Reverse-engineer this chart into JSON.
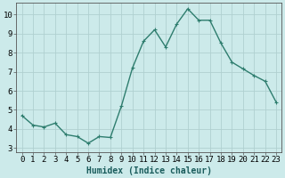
{
  "x": [
    0,
    1,
    2,
    3,
    4,
    5,
    6,
    7,
    8,
    9,
    10,
    11,
    12,
    13,
    14,
    15,
    16,
    17,
    18,
    19,
    20,
    21,
    22,
    23
  ],
  "y": [
    4.7,
    4.2,
    4.1,
    4.3,
    3.7,
    3.6,
    3.25,
    3.6,
    3.55,
    5.2,
    7.2,
    8.6,
    9.2,
    8.3,
    9.5,
    10.3,
    9.7,
    9.7,
    8.5,
    7.5,
    7.15,
    6.8,
    6.5,
    5.4
  ],
  "color": "#2e7d6e",
  "bg_color": "#cceaea",
  "grid_color": "#b0d0d0",
  "xlabel": "Humidex (Indice chaleur)",
  "ylim": [
    2.8,
    10.6
  ],
  "xlim": [
    -0.5,
    23.5
  ],
  "yticks": [
    3,
    4,
    5,
    6,
    7,
    8,
    9,
    10
  ],
  "xticks": [
    0,
    1,
    2,
    3,
    4,
    5,
    6,
    7,
    8,
    9,
    10,
    11,
    12,
    13,
    14,
    15,
    16,
    17,
    18,
    19,
    20,
    21,
    22,
    23
  ],
  "markersize": 2.5,
  "linewidth": 1.0,
  "xlabel_fontsize": 7,
  "tick_fontsize": 6.5
}
